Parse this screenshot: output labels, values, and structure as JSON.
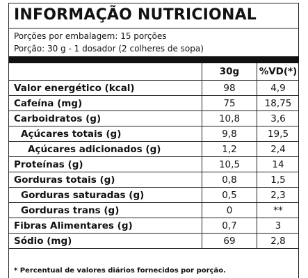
{
  "header": {
    "title": "INFORMAÇÃO NUTRICIONAL",
    "servings_per_package": "Porções por embalagem: 15 porções",
    "serving_size": "Porção: 30 g - 1 dosador (2 colheres de sopa)"
  },
  "table": {
    "columns": [
      "30g",
      "%VD(*)"
    ],
    "rows": [
      [
        "Valor energético (kcal)",
        "98",
        "4,9"
      ],
      [
        "Cafeína (mg)",
        "75",
        "18,75"
      ],
      [
        "Carboidratos (g)",
        "10,8",
        "3,6"
      ],
      [
        "Açúcares totais (g)",
        "9,8",
        "19,5"
      ],
      [
        "Açúcares adicionados (g)",
        "1,2",
        "2,4"
      ],
      [
        "Proteínas (g)",
        "10,5",
        "14"
      ],
      [
        "Gorduras totais (g)",
        "0,8",
        "1,5"
      ],
      [
        "Gorduras saturadas (g)",
        "0,5",
        "2,3"
      ],
      [
        "Gorduras trans (g)",
        "0",
        "**"
      ],
      [
        "Fibras Alimentares (g)",
        "0,7",
        "3"
      ],
      [
        "Sódio (mg)",
        "69",
        "2,8"
      ]
    ]
  },
  "footnote": "* Percentual de valores diários fornecidos por porção."
}
